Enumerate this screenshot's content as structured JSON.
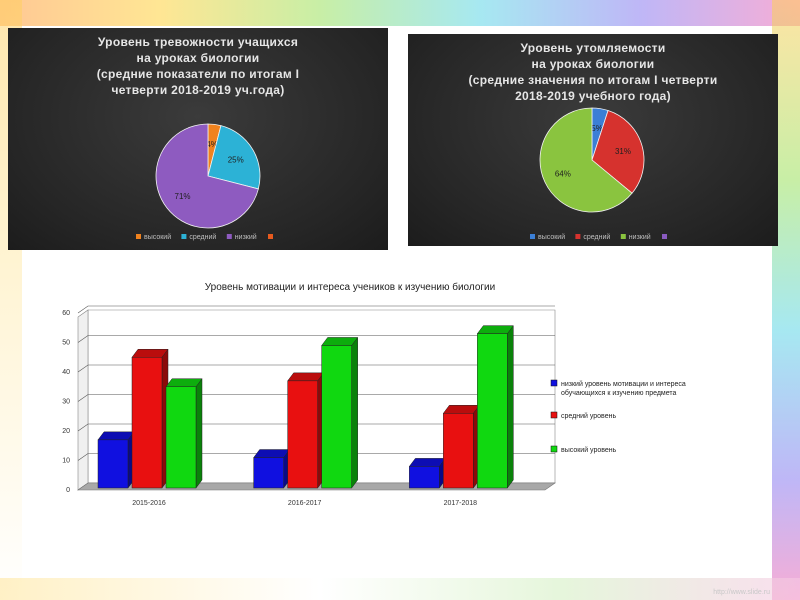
{
  "pie1": {
    "title": "Уровень тревожности учащихся\nна уроках биологии\n(средние показатели  по итогам I\nчетверти 2018-2019 уч.года)",
    "slices": [
      {
        "label": "высокий",
        "value": 4,
        "text": "4%",
        "color": "#f0821e"
      },
      {
        "label": "средний",
        "value": 25,
        "text": "25%",
        "color": "#2cb2d6"
      },
      {
        "label": "низкий",
        "value": 71,
        "text": "71%",
        "color": "#8e5bc0"
      }
    ],
    "legend_extra": {
      "label": "",
      "color": "#e65a1e"
    }
  },
  "pie2": {
    "title": "Уровень утомляемости\nна уроках биологии\n(средние значения по итогам I четверти\n2018-2019 учебного года)",
    "slices": [
      {
        "label": "высокий",
        "value": 5,
        "text": "5%",
        "color": "#3b7fd6"
      },
      {
        "label": "средний",
        "value": 31,
        "text": "31%",
        "color": "#d6322e"
      },
      {
        "label": "низкий",
        "value": 64,
        "text": "64%",
        "color": "#8ac43f"
      }
    ],
    "legend_extra": {
      "label": "",
      "color": "#8a5bc0"
    }
  },
  "chart_data": {
    "type": "bar",
    "title": "Уровень мотивации и интереса учеников к изучению биологии",
    "categories": [
      "2015-2016",
      "2016-2017",
      "2017-2018"
    ],
    "ylim": [
      0,
      60
    ],
    "yticks": [
      0,
      10,
      20,
      30,
      40,
      50,
      60
    ],
    "grid": true,
    "legend_position": "right",
    "series": [
      {
        "name": "низкий уровень мотивации и интереса обучающихся к изучению предмета",
        "values": [
          17,
          11,
          8
        ],
        "color": "#1010e0"
      },
      {
        "name": "средний уровень",
        "values": [
          45,
          37,
          26
        ],
        "color": "#e81010"
      },
      {
        "name": "высокий уровень",
        "values": [
          35,
          49,
          53
        ],
        "color": "#10d810"
      }
    ]
  },
  "footer": "http://www.slide.ru"
}
